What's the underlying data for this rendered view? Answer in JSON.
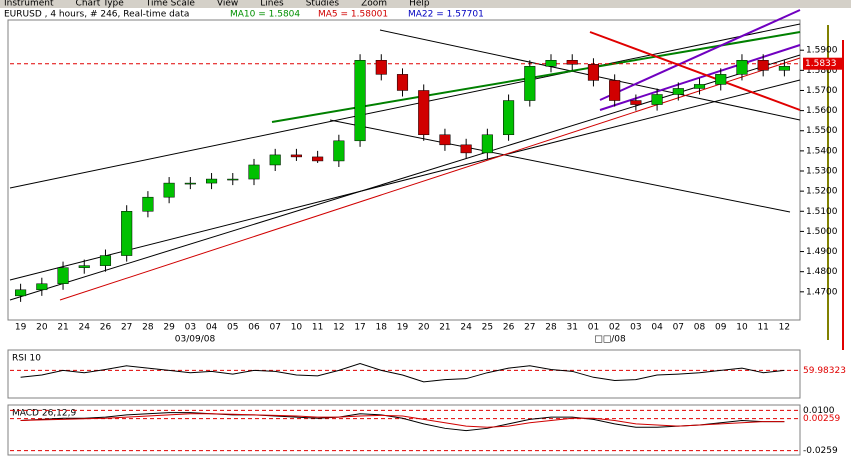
{
  "menu": [
    "Instrument",
    "Chart Type",
    "Time Scale",
    "View",
    "Lines",
    "Studies",
    "Zoom",
    "Help"
  ],
  "header": {
    "symbol": "EURUSD , 4 hours, # 246, Real-time data",
    "ma10": "MA10 = 1.5804",
    "ma5": "MA5 = 1.58001",
    "ma22": "MA22 = 1.57701"
  },
  "chart_data": {
    "type": "candlestick",
    "categories": [
      "19",
      "20",
      "21",
      "24",
      "26",
      "27",
      "28",
      "29",
      "03",
      "04",
      "05",
      "06",
      "07",
      "10",
      "11",
      "12",
      "17",
      "18",
      "19",
      "20",
      "21",
      "24",
      "25",
      "26",
      "27",
      "28",
      "31",
      "01",
      "02",
      "03",
      "04",
      "07",
      "08",
      "09",
      "10",
      "11",
      "12"
    ],
    "date_labels": [
      "03/09/08",
      "□□/08"
    ],
    "open": [
      1.468,
      1.471,
      1.474,
      1.482,
      1.483,
      1.488,
      1.51,
      1.517,
      1.524,
      1.524,
      1.526,
      1.526,
      1.533,
      1.538,
      1.537,
      1.535,
      1.545,
      1.585,
      1.578,
      1.57,
      1.548,
      1.543,
      1.539,
      1.548,
      1.565,
      1.582,
      1.585,
      1.583,
      1.575,
      1.565,
      1.563,
      1.568,
      1.571,
      1.573,
      1.578,
      1.585,
      1.58
    ],
    "high": [
      1.474,
      1.477,
      1.485,
      1.486,
      1.491,
      1.513,
      1.52,
      1.527,
      1.527,
      1.529,
      1.529,
      1.536,
      1.541,
      1.541,
      1.54,
      1.548,
      1.588,
      1.588,
      1.581,
      1.573,
      1.551,
      1.546,
      1.551,
      1.568,
      1.585,
      1.588,
      1.588,
      1.586,
      1.578,
      1.568,
      1.571,
      1.574,
      1.576,
      1.581,
      1.588,
      1.588,
      1.585
    ],
    "low": [
      1.465,
      1.468,
      1.471,
      1.479,
      1.48,
      1.485,
      1.507,
      1.514,
      1.521,
      1.521,
      1.523,
      1.523,
      1.53,
      1.535,
      1.534,
      1.532,
      1.542,
      1.575,
      1.567,
      1.545,
      1.54,
      1.536,
      1.536,
      1.545,
      1.562,
      1.579,
      1.58,
      1.572,
      1.562,
      1.56,
      1.56,
      1.565,
      1.568,
      1.57,
      1.575,
      1.577,
      1.577
    ],
    "close": [
      1.471,
      1.474,
      1.482,
      1.483,
      1.488,
      1.51,
      1.517,
      1.524,
      1.524,
      1.526,
      1.526,
      1.533,
      1.538,
      1.537,
      1.535,
      1.545,
      1.585,
      1.578,
      1.57,
      1.548,
      1.543,
      1.539,
      1.548,
      1.565,
      1.582,
      1.585,
      1.583,
      1.575,
      1.565,
      1.563,
      1.568,
      1.571,
      1.573,
      1.578,
      1.585,
      1.58,
      1.582
    ],
    "up_color": "#00c000",
    "down_color": "#d00000",
    "ylim": [
      1.456,
      1.605
    ],
    "yticks": [
      {
        "value": 1.47,
        "label": "1.4700"
      },
      {
        "value": 1.48,
        "label": "1.4800"
      },
      {
        "value": 1.49,
        "label": "1.4900"
      },
      {
        "value": 1.5,
        "label": "1.5000"
      },
      {
        "value": 1.51,
        "label": "1.5100"
      },
      {
        "value": 1.52,
        "label": "1.5200"
      },
      {
        "value": 1.53,
        "label": "1.5300"
      },
      {
        "value": 1.54,
        "label": "1.5400"
      },
      {
        "value": 1.55,
        "label": "1.5500"
      },
      {
        "value": 1.56,
        "label": "1.5600"
      },
      {
        "value": 1.57,
        "label": "1.5700"
      },
      {
        "value": 1.58,
        "label": "1.5800"
      },
      {
        "value": 1.59,
        "label": "1.5900"
      }
    ],
    "marker": {
      "value": 1.5833,
      "label": "1.5833"
    },
    "rsi": {
      "title": "RSI 10",
      "ylim": [
        0,
        100
      ],
      "level": {
        "value": 59.98323,
        "label": "59.98323"
      },
      "values": [
        45,
        50,
        60,
        55,
        62,
        70,
        65,
        60,
        55,
        58,
        52,
        60,
        58,
        50,
        48,
        60,
        75,
        60,
        50,
        35,
        40,
        42,
        55,
        65,
        70,
        62,
        58,
        45,
        38,
        40,
        50,
        52,
        55,
        60,
        65,
        55,
        60
      ]
    },
    "macd": {
      "title": "MACD 26,12,9",
      "ylim": [
        -0.028,
        0.013
      ],
      "yticks": [
        {
          "value": 0.01,
          "label": "0.0100"
        },
        {
          "value": 0.00259,
          "label": "0.00259"
        },
        {
          "value": -0.0259,
          "label": "-0.0259"
        }
      ],
      "macd": [
        0.001,
        0.002,
        0.003,
        0.003,
        0.004,
        0.006,
        0.007,
        0.008,
        0.008,
        0.007,
        0.006,
        0.006,
        0.005,
        0.004,
        0.003,
        0.004,
        0.007,
        0.006,
        0.003,
        -0.002,
        -0.006,
        -0.008,
        -0.006,
        -0.002,
        0.002,
        0.004,
        0.004,
        0.002,
        -0.002,
        -0.005,
        -0.005,
        -0.004,
        -0.003,
        -0.001,
        0.001,
        0.0,
        0.0
      ],
      "signal": [
        0.001,
        0.0015,
        0.002,
        0.0025,
        0.003,
        0.004,
        0.005,
        0.006,
        0.007,
        0.007,
        0.0065,
        0.006,
        0.0055,
        0.005,
        0.004,
        0.004,
        0.005,
        0.0055,
        0.005,
        0.002,
        -0.001,
        -0.004,
        -0.005,
        -0.004,
        -0.001,
        0.001,
        0.003,
        0.003,
        0.001,
        -0.002,
        -0.003,
        -0.004,
        -0.003,
        -0.002,
        -0.001,
        0.0,
        0.0
      ]
    }
  }
}
